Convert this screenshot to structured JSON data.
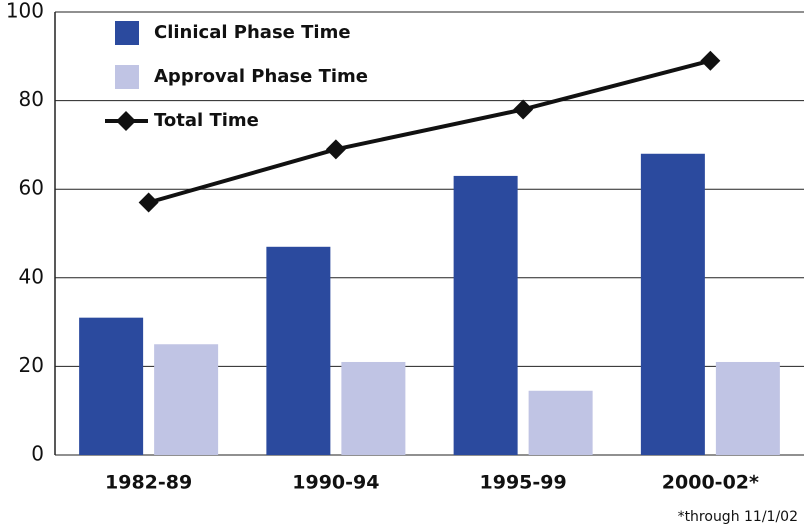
{
  "chart_data": {
    "type": "bar",
    "categories": [
      "1982-89",
      "1990-94",
      "1995-99",
      "2000-02*"
    ],
    "series": [
      {
        "name": "Clinical Phase Time",
        "type": "bar",
        "color": "#2b4a9e",
        "values": [
          31,
          47,
          63,
          68
        ]
      },
      {
        "name": "Approval Phase Time",
        "type": "bar",
        "color": "#c0c4e4",
        "values": [
          25,
          21,
          14.5,
          21
        ]
      },
      {
        "name": "Total Time",
        "type": "line",
        "color": "#111111",
        "values": [
          57,
          69,
          78,
          89
        ]
      }
    ],
    "ylim": [
      0,
      100
    ],
    "yticks": [
      0,
      20,
      40,
      60,
      80,
      100
    ],
    "grid": true,
    "legend": "upper left",
    "annotation": "*through 11/1/02"
  }
}
